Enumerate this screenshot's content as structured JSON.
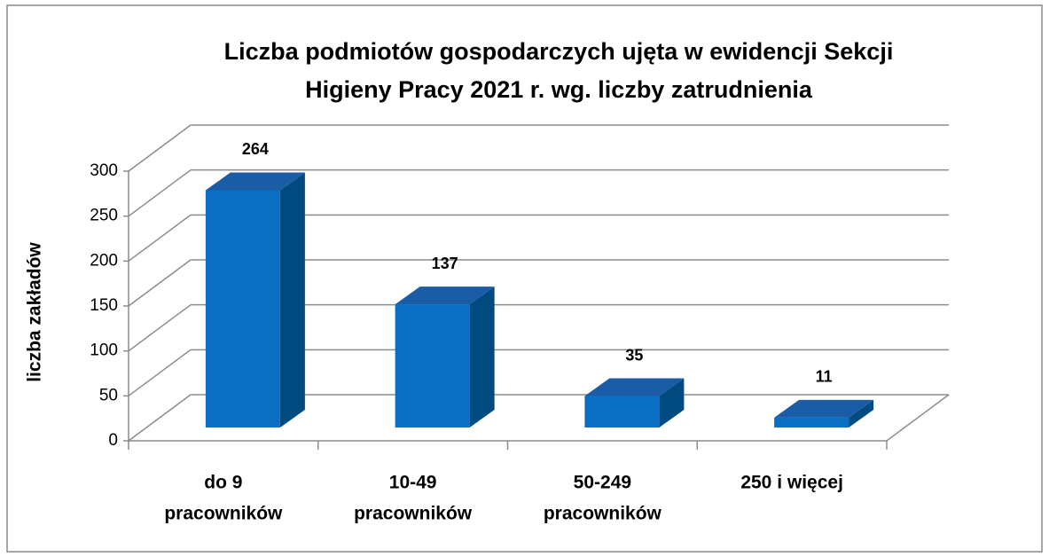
{
  "chart_data": {
    "type": "bar3d",
    "title": [
      "Liczba podmiotów gospodarczych ujęta w ewidencji Sekcji",
      "Higieny Pracy 2021 r. wg. liczby zatrudnienia"
    ],
    "ylabel": "liczba zakładów",
    "categories": [
      [
        "do 9",
        "pracowników"
      ],
      [
        "10-49",
        "pracowników"
      ],
      [
        "50-249",
        "pracowników"
      ],
      [
        "250 i więcej"
      ]
    ],
    "values": [
      264,
      137,
      35,
      11
    ],
    "color": "#0a6fc2",
    "ylim": [
      0,
      300
    ],
    "yticks": [
      0,
      50,
      100,
      150,
      200,
      250,
      300
    ],
    "grid": true
  }
}
